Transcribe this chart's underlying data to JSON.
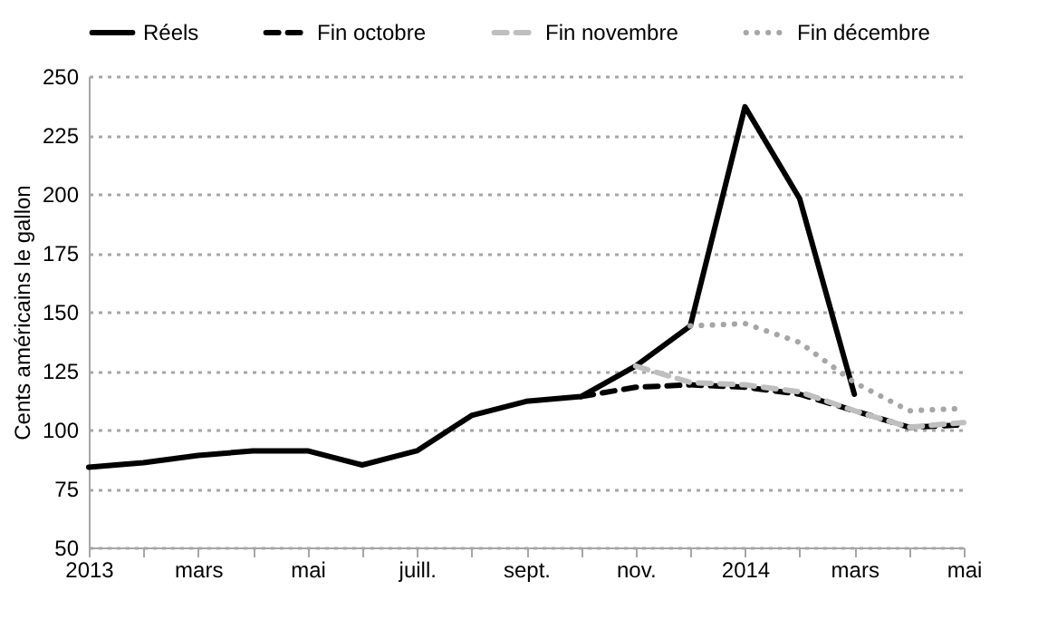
{
  "chart_data": {
    "type": "line",
    "ylabel": "Cents américains le gallon",
    "categories": [
      "2013",
      null,
      "mars",
      null,
      "mai",
      null,
      "juill.",
      null,
      "sept.",
      null,
      "nov.",
      null,
      "2014",
      null,
      "mars",
      null,
      "mai"
    ],
    "ylim": [
      50,
      250
    ],
    "yticks": [
      50,
      75,
      100,
      125,
      150,
      175,
      200,
      225,
      250
    ],
    "grid": "y",
    "legend": "top",
    "series": [
      {
        "name": "Réels",
        "color": "#000000",
        "line_style": "solid",
        "values": [
          84,
          86,
          89,
          91,
          91,
          85,
          91,
          106,
          112,
          114,
          127,
          144,
          237,
          198,
          115,
          null,
          null
        ]
      },
      {
        "name": "Fin octobre",
        "color": "#000000",
        "line_style": "dashed",
        "values": [
          null,
          null,
          null,
          null,
          null,
          null,
          null,
          null,
          null,
          114,
          118,
          119,
          118,
          115,
          108,
          101,
          102
        ]
      },
      {
        "name": "Fin novembre",
        "color": "#bfbfbf",
        "line_style": "dashed",
        "values": [
          null,
          null,
          null,
          null,
          null,
          null,
          null,
          null,
          null,
          null,
          127,
          120,
          119,
          116,
          108,
          101,
          103
        ]
      },
      {
        "name": "Fin décembre",
        "color": "#a6a6a6",
        "line_style": "dotted",
        "values": [
          null,
          null,
          null,
          null,
          null,
          null,
          null,
          null,
          null,
          null,
          null,
          144,
          145,
          137,
          120,
          108,
          109
        ]
      }
    ]
  }
}
